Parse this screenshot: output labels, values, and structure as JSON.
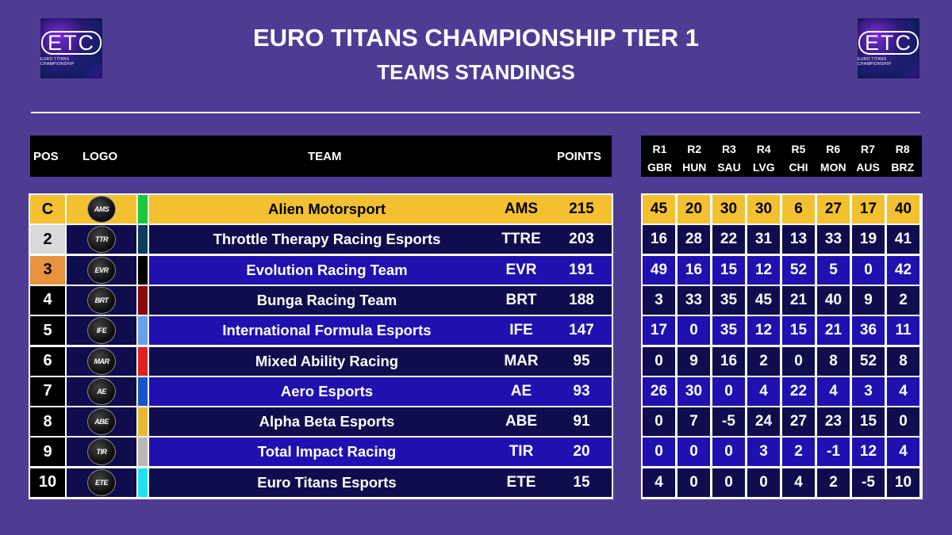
{
  "brand": {
    "logo_text": "ETC",
    "logo_subtext": "EURO TITANS CHAMPIONSHIP"
  },
  "header": {
    "title": "EURO TITANS CHAMPIONSHIP TIER 1",
    "subtitle": "TEAMS STANDINGS"
  },
  "columns": {
    "pos": "POS",
    "logo": "LOGO",
    "team": "TEAM",
    "points": "POINTS"
  },
  "rounds": [
    {
      "label": "R1",
      "venue": "GBR"
    },
    {
      "label": "R2",
      "venue": "HUN"
    },
    {
      "label": "R3",
      "venue": "SAU"
    },
    {
      "label": "R4",
      "venue": "LVG"
    },
    {
      "label": "R5",
      "venue": "CHI"
    },
    {
      "label": "R6",
      "venue": "MON"
    },
    {
      "label": "R7",
      "venue": "AUS"
    },
    {
      "label": "R8",
      "venue": "BRZ"
    }
  ],
  "colors": {
    "background": "#4e3c94",
    "champion": "#f3c130",
    "second": "#d9d9d9",
    "third": "#e8933e",
    "row_dark": "#0f0d4e",
    "row_light": "#2110b0"
  },
  "teams": [
    {
      "pos": "C",
      "logo_icon": "alien-motorsport-logo-icon",
      "logo_text": "AMS",
      "name": "Alien Motorsport",
      "code": "AMS",
      "points": "215",
      "stripe": "#19c93a",
      "results": [
        "45",
        "20",
        "30",
        "30",
        "6",
        "27",
        "17",
        "40"
      ]
    },
    {
      "pos": "2",
      "logo_icon": "ttre-logo-icon",
      "logo_text": "TTR",
      "name": "Throttle Therapy Racing Esports",
      "code": "TTRE",
      "points": "203",
      "stripe": "#0d3b5c",
      "results": [
        "16",
        "28",
        "22",
        "31",
        "13",
        "33",
        "19",
        "41"
      ]
    },
    {
      "pos": "3",
      "logo_icon": "evr-logo-icon",
      "logo_text": "EVR",
      "name": "Evolution Racing Team",
      "code": "EVR",
      "points": "191",
      "stripe": "#000000",
      "results": [
        "49",
        "16",
        "15",
        "12",
        "52",
        "5",
        "0",
        "42"
      ]
    },
    {
      "pos": "4",
      "logo_icon": "brt-logo-icon",
      "logo_text": "BRT",
      "name": "Bunga Racing Team",
      "code": "BRT",
      "points": "188",
      "stripe": "#8a0a0a",
      "results": [
        "3",
        "33",
        "35",
        "45",
        "21",
        "40",
        "9",
        "2"
      ]
    },
    {
      "pos": "5",
      "logo_icon": "ife-logo-icon",
      "logo_text": "IFE",
      "name": "International Formula Esports",
      "code": "IFE",
      "points": "147",
      "stripe": "#6aa0e8",
      "results": [
        "17",
        "0",
        "35",
        "12",
        "15",
        "21",
        "36",
        "11"
      ]
    },
    {
      "pos": "6",
      "logo_icon": "mar-logo-icon",
      "logo_text": "MAR",
      "name": "Mixed Ability Racing",
      "code": "MAR",
      "points": "95",
      "stripe": "#e02020",
      "results": [
        "0",
        "9",
        "16",
        "2",
        "0",
        "8",
        "52",
        "8"
      ]
    },
    {
      "pos": "7",
      "logo_icon": "ae-logo-icon",
      "logo_text": "AE",
      "name": "Aero Esports",
      "code": "AE",
      "points": "93",
      "stripe": "#1a52c8",
      "results": [
        "26",
        "30",
        "0",
        "4",
        "22",
        "4",
        "3",
        "4"
      ]
    },
    {
      "pos": "8",
      "logo_icon": "abe-logo-icon",
      "logo_text": "ABE",
      "name": "Alpha Beta Esports",
      "code": "ABE",
      "points": "91",
      "stripe": "#e8b830",
      "results": [
        "0",
        "7",
        "-5",
        "24",
        "27",
        "23",
        "15",
        "0"
      ]
    },
    {
      "pos": "9",
      "logo_icon": "tir-logo-icon",
      "logo_text": "TIR",
      "name": "Total Impact Racing",
      "code": "TIR",
      "points": "20",
      "stripe": "#b8b8b8",
      "results": [
        "0",
        "0",
        "0",
        "3",
        "2",
        "-1",
        "12",
        "4"
      ]
    },
    {
      "pos": "10",
      "logo_icon": "ete-logo-icon",
      "logo_text": "ETE",
      "name": "Euro Titans Esports",
      "code": "ETE",
      "points": "15",
      "stripe": "#20e0ee",
      "results": [
        "4",
        "0",
        "0",
        "0",
        "4",
        "2",
        "-5",
        "10"
      ]
    }
  ]
}
